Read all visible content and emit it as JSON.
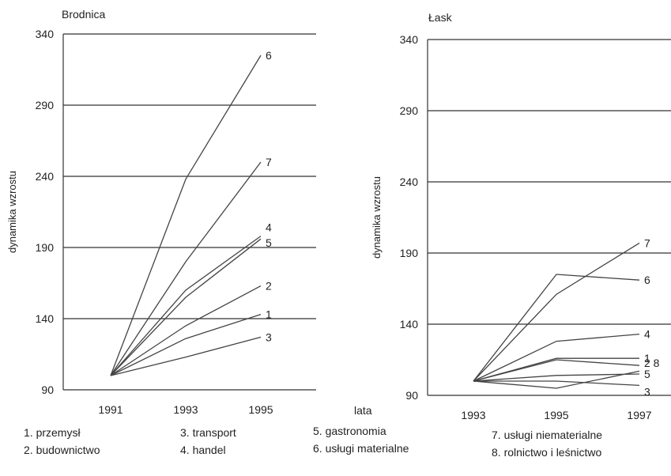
{
  "x_axis_caption": "lata",
  "chart_data": [
    {
      "type": "line",
      "title": "Brodnica",
      "xlabel": "",
      "ylabel": "dynamika wzrostu",
      "x": [
        1991,
        1993,
        1995
      ],
      "ylim": [
        90,
        340
      ],
      "yticks": [
        90,
        140,
        190,
        240,
        290,
        340
      ],
      "grid": "horizontal",
      "series": [
        {
          "name": "1",
          "values": [
            100,
            126,
            143
          ]
        },
        {
          "name": "2",
          "values": [
            100,
            135,
            163
          ]
        },
        {
          "name": "3",
          "values": [
            100,
            113,
            127
          ]
        },
        {
          "name": "4",
          "values": [
            100,
            160,
            198
          ]
        },
        {
          "name": "5",
          "values": [
            100,
            155,
            196
          ]
        },
        {
          "name": "6",
          "values": [
            100,
            238,
            325
          ]
        },
        {
          "name": "7",
          "values": [
            100,
            180,
            250
          ]
        }
      ]
    },
    {
      "type": "line",
      "title": "Łask",
      "xlabel": "",
      "ylabel": "dynamika wzrostu",
      "x": [
        1993,
        1995,
        1997
      ],
      "ylim": [
        90,
        340
      ],
      "yticks": [
        90,
        140,
        190,
        240,
        290,
        340
      ],
      "grid": "horizontal",
      "series": [
        {
          "name": "1",
          "values": [
            100,
            116,
            116
          ]
        },
        {
          "name": "2",
          "values": [
            100,
            115,
            111
          ]
        },
        {
          "name": "3",
          "values": [
            100,
            100,
            97
          ]
        },
        {
          "name": "4",
          "values": [
            100,
            128,
            133
          ]
        },
        {
          "name": "5",
          "values": [
            100,
            104,
            105
          ]
        },
        {
          "name": "6",
          "values": [
            100,
            175,
            171
          ]
        },
        {
          "name": "7",
          "values": [
            100,
            161,
            197
          ]
        },
        {
          "name": "8",
          "values": [
            100,
            95,
            107
          ]
        }
      ]
    }
  ],
  "legend": [
    [
      "1. przemysł",
      "2. budownictwo"
    ],
    [
      "3. transport",
      "4. handel"
    ],
    [
      "5. gastronomia",
      "6. usługi materialne"
    ],
    [
      "7. usługi niematerialne",
      "8. rolnictwo i leśnictwo"
    ]
  ]
}
